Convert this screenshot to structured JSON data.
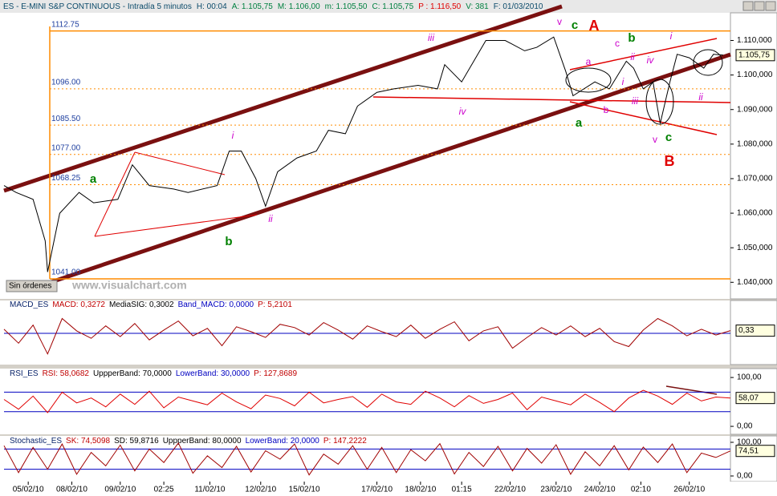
{
  "header": {
    "fields": [
      {
        "text": "ES - E-MINI S&P CONTINUOUS - Intradía 5 minutos",
        "color": "#0a4a6a"
      },
      {
        "text": "H: 00:04",
        "color": "#0a4a6a"
      },
      {
        "text": "A: 1.105,75",
        "color": "#008040"
      },
      {
        "text": "M: 1.106,00",
        "color": "#008040"
      },
      {
        "text": "m: 1.105,50",
        "color": "#008040"
      },
      {
        "text": "C: 1.105,75",
        "color": "#008040"
      },
      {
        "text": "P : 1.116,50",
        "color": "#e00000"
      },
      {
        "text": "V: 381",
        "color": "#008040"
      },
      {
        "text": "F: 01/03/2010",
        "color": "#0a4a6a"
      }
    ]
  },
  "watermark": "www.visualchart.com",
  "orders_button": "Sin órdenes",
  "chart_data": [
    {
      "type": "line",
      "color": "#000000",
      "x": [
        0,
        5,
        12,
        17,
        18,
        23,
        31,
        37,
        47,
        53,
        60,
        70,
        76,
        88,
        93,
        98,
        104,
        108,
        113,
        121,
        129,
        134,
        141,
        146,
        154,
        161,
        171,
        179,
        182,
        189,
        194,
        199,
        207,
        215,
        220,
        227,
        232,
        235,
        244,
        250,
        257,
        260,
        264,
        268,
        271,
        275,
        278,
        283,
        289,
        293,
        297
      ],
      "values": [
        1068,
        1066,
        1064,
        1052,
        1043,
        1060,
        1066,
        1063,
        1064,
        1074,
        1068,
        1067,
        1066,
        1068,
        1078,
        1078,
        1070,
        1062,
        1072,
        1076,
        1078,
        1084,
        1083,
        1091,
        1095,
        1096,
        1097,
        1096,
        1103,
        1098,
        1104,
        1110,
        1110,
        1107,
        1108,
        1111,
        1101,
        1094,
        1098,
        1096,
        1104,
        1102,
        1096,
        1098,
        1086,
        1098,
        1106,
        1105,
        1102,
        1106,
        1105.75
      ],
      "xlim": [
        0,
        300
      ],
      "xticks": [
        {
          "value": 10,
          "label": "05/02/10"
        },
        {
          "value": 28,
          "label": "08/02/10"
        },
        {
          "value": 48,
          "label": "09/02/10"
        },
        {
          "value": 66,
          "label": "02:25"
        },
        {
          "value": 85,
          "label": "11/02/10"
        },
        {
          "value": 106,
          "label": "12/02/10"
        },
        {
          "value": 124,
          "label": "15/02/10"
        },
        {
          "value": 154,
          "label": "17/02/10"
        },
        {
          "value": 172,
          "label": "18/02/10"
        },
        {
          "value": 189,
          "label": "01:15"
        },
        {
          "value": 209,
          "label": "22/02/10"
        },
        {
          "value": 228,
          "label": "23/02/10"
        },
        {
          "value": 246,
          "label": "24/02/10"
        },
        {
          "value": 263,
          "label": "02:10"
        },
        {
          "value": 283,
          "label": "26/02/10"
        }
      ],
      "ylim": [
        1035.2,
        1118
      ],
      "yticks": [
        {
          "value": 1040,
          "label": "1.040,000"
        },
        {
          "value": 1050,
          "label": "1.050,000"
        },
        {
          "value": 1060,
          "label": "1.060,000"
        },
        {
          "value": 1070,
          "label": "1.070,000"
        },
        {
          "value": 1080,
          "label": "1.080,000"
        },
        {
          "value": 1090,
          "label": "1.090,000"
        },
        {
          "value": 1100,
          "label": "1.100,000"
        },
        {
          "value": 1110,
          "label": "1.110,000"
        }
      ],
      "levels": [
        {
          "value": 1112.75,
          "label": "1112.75",
          "dashed": false
        },
        {
          "value": 1096,
          "label": "1096.00",
          "dashed": true
        },
        {
          "value": 1085.5,
          "label": "1085.50",
          "dashed": true
        },
        {
          "value": 1077,
          "label": "1077.00",
          "dashed": true
        },
        {
          "value": 1068.25,
          "label": "1068.25",
          "dashed": true
        },
        {
          "value": 1041,
          "label": "1041.00",
          "dashed": false
        }
      ],
      "last_value": {
        "value": 1105.75,
        "label": "1.105,75"
      },
      "annotations": [
        {
          "text": "c",
          "color": "#008000"
        },
        {
          "text": "A",
          "color": "#e00000"
        },
        {
          "text": "iii",
          "color": "#cc00cc"
        },
        {
          "text": "v",
          "color": "#cc00cc"
        },
        {
          "text": "c",
          "color": "#cc00cc"
        },
        {
          "text": "b",
          "color": "#008000"
        },
        {
          "text": "i",
          "color": "#cc00cc"
        },
        {
          "text": "ii",
          "color": "#cc00cc"
        },
        {
          "text": "a",
          "color": "#cc00cc"
        },
        {
          "text": "iv",
          "color": "#cc00cc"
        },
        {
          "text": "i",
          "color": "#cc00cc"
        },
        {
          "text": "iii",
          "color": "#cc00cc"
        },
        {
          "text": "ii",
          "color": "#cc00cc"
        },
        {
          "text": "b",
          "color": "#cc00cc"
        },
        {
          "text": "iv",
          "color": "#cc00cc"
        },
        {
          "text": "a",
          "color": "#008000"
        },
        {
          "text": "v",
          "color": "#cc00cc"
        },
        {
          "text": "c",
          "color": "#008000"
        },
        {
          "text": "B",
          "color": "#e00000"
        },
        {
          "text": "i",
          "color": "#cc00cc"
        },
        {
          "text": "a",
          "color": "#008000"
        },
        {
          "text": "ii",
          "color": "#cc00cc"
        },
        {
          "text": "b",
          "color": "#008000"
        }
      ]
    },
    {
      "type": "line",
      "color": "#a00000",
      "title_fields": [
        {
          "text": "MACD_ES",
          "color": "#0a246a"
        },
        {
          "text": "MACD: 0,3272",
          "color": "#c00000"
        },
        {
          "text": "MediaSIG: 0,3002",
          "color": "#000000"
        },
        {
          "text": "Band_MACD: 0,0000",
          "color": "#0000c0"
        },
        {
          "text": "P: 5,2101",
          "color": "#c00000"
        }
      ],
      "x": [
        0,
        6,
        12,
        18,
        24,
        30,
        36,
        42,
        48,
        54,
        60,
        66,
        72,
        78,
        84,
        90,
        96,
        102,
        108,
        114,
        120,
        126,
        132,
        138,
        144,
        150,
        156,
        162,
        168,
        174,
        180,
        186,
        192,
        198,
        204,
        210,
        216,
        222,
        228,
        234,
        240,
        246,
        252,
        258,
        264,
        270,
        276,
        282,
        288,
        294,
        300
      ],
      "values": [
        0.5,
        -1.2,
        1.0,
        -2.5,
        1.8,
        0.3,
        -0.6,
        0.9,
        -0.4,
        1.2,
        -0.8,
        0.4,
        1.5,
        -0.3,
        0.6,
        -1.5,
        0.8,
        0.2,
        -0.5,
        1.1,
        0.7,
        -0.2,
        1.3,
        0.4,
        -0.7,
        0.9,
        0.2,
        -0.4,
        1.0,
        -0.6,
        0.5,
        1.4,
        -0.9,
        0.3,
        0.8,
        -1.8,
        -0.5,
        0.7,
        -0.2,
        0.9,
        -0.4,
        0.6,
        -1.0,
        -1.6,
        0.4,
        1.8,
        0.9,
        -0.3,
        0.5,
        -0.2,
        0.33
      ],
      "xlim": [
        0,
        300
      ],
      "ylim": [
        -3.5,
        3.5
      ],
      "yticks": [],
      "bands": [
        0
      ],
      "last_value": {
        "value": 0.33,
        "label": "0,33"
      }
    },
    {
      "type": "line",
      "color": "#e00000",
      "title_fields": [
        {
          "text": "RSI_ES",
          "color": "#0a246a"
        },
        {
          "text": "RSI: 58,0682",
          "color": "#c00000"
        },
        {
          "text": "UppperBand: 70,0000",
          "color": "#000000"
        },
        {
          "text": "LowerBand: 30,0000",
          "color": "#0000c0"
        },
        {
          "text": "P: 127,8689",
          "color": "#c00000"
        }
      ],
      "x": [
        0,
        6,
        12,
        18,
        24,
        30,
        36,
        42,
        48,
        54,
        60,
        66,
        72,
        78,
        84,
        90,
        96,
        102,
        108,
        114,
        120,
        126,
        132,
        138,
        144,
        150,
        156,
        162,
        168,
        174,
        180,
        186,
        192,
        198,
        204,
        210,
        216,
        222,
        228,
        234,
        240,
        246,
        252,
        258,
        264,
        270,
        276,
        282,
        288,
        294,
        300
      ],
      "values": [
        55,
        35,
        62,
        28,
        70,
        48,
        58,
        40,
        66,
        45,
        72,
        38,
        60,
        52,
        44,
        68,
        50,
        36,
        64,
        57,
        42,
        70,
        48,
        55,
        61,
        39,
        66,
        50,
        45,
        72,
        58,
        40,
        63,
        47,
        55,
        68,
        34,
        60,
        52,
        44,
        66,
        49,
        30,
        58,
        74,
        62,
        45,
        68,
        52,
        60,
        58.07
      ],
      "xlim": [
        0,
        300
      ],
      "ylim": [
        -13,
        110
      ],
      "yticks": [
        {
          "value": 100,
          "label": "100,00"
        },
        {
          "value": 0,
          "label": "0,00"
        }
      ],
      "bands": [
        70,
        30
      ],
      "last_value": {
        "value": 58.07,
        "label": "58,07"
      }
    },
    {
      "type": "line",
      "color": "#a00000",
      "title_fields": [
        {
          "text": "Stochastic_ES",
          "color": "#0a246a"
        },
        {
          "text": "SK: 74,5098",
          "color": "#c00000"
        },
        {
          "text": "SD: 59,8716",
          "color": "#000000"
        },
        {
          "text": "UppperBand: 80,0000",
          "color": "#000000"
        },
        {
          "text": "LowerBand: 20,0000",
          "color": "#0000c0"
        },
        {
          "text": "P: 147,2222",
          "color": "#c00000"
        }
      ],
      "x": [
        0,
        6,
        12,
        18,
        24,
        30,
        36,
        42,
        48,
        54,
        60,
        66,
        72,
        78,
        84,
        90,
        96,
        102,
        108,
        114,
        120,
        126,
        132,
        138,
        144,
        150,
        156,
        162,
        168,
        174,
        180,
        186,
        192,
        198,
        204,
        210,
        216,
        222,
        228,
        234,
        240,
        246,
        252,
        258,
        264,
        270,
        276,
        282,
        288,
        294,
        300
      ],
      "values": [
        90,
        10,
        85,
        20,
        95,
        5,
        70,
        30,
        92,
        15,
        80,
        40,
        98,
        8,
        60,
        25,
        88,
        12,
        75,
        50,
        95,
        3,
        65,
        35,
        90,
        20,
        85,
        10,
        78,
        45,
        96,
        6,
        70,
        28,
        88,
        15,
        82,
        38,
        93,
        5,
        72,
        30,
        90,
        18,
        86,
        40,
        95,
        10,
        68,
        55,
        74.51
      ],
      "xlim": [
        0,
        300
      ],
      "ylim": [
        -14.3,
        116.7
      ],
      "yticks": [
        {
          "value": 100,
          "label": "100,00"
        },
        {
          "value": 0,
          "label": "0,00"
        }
      ],
      "bands": [
        80,
        20
      ],
      "last_value": {
        "value": 74.51,
        "label": "74,51"
      }
    }
  ]
}
